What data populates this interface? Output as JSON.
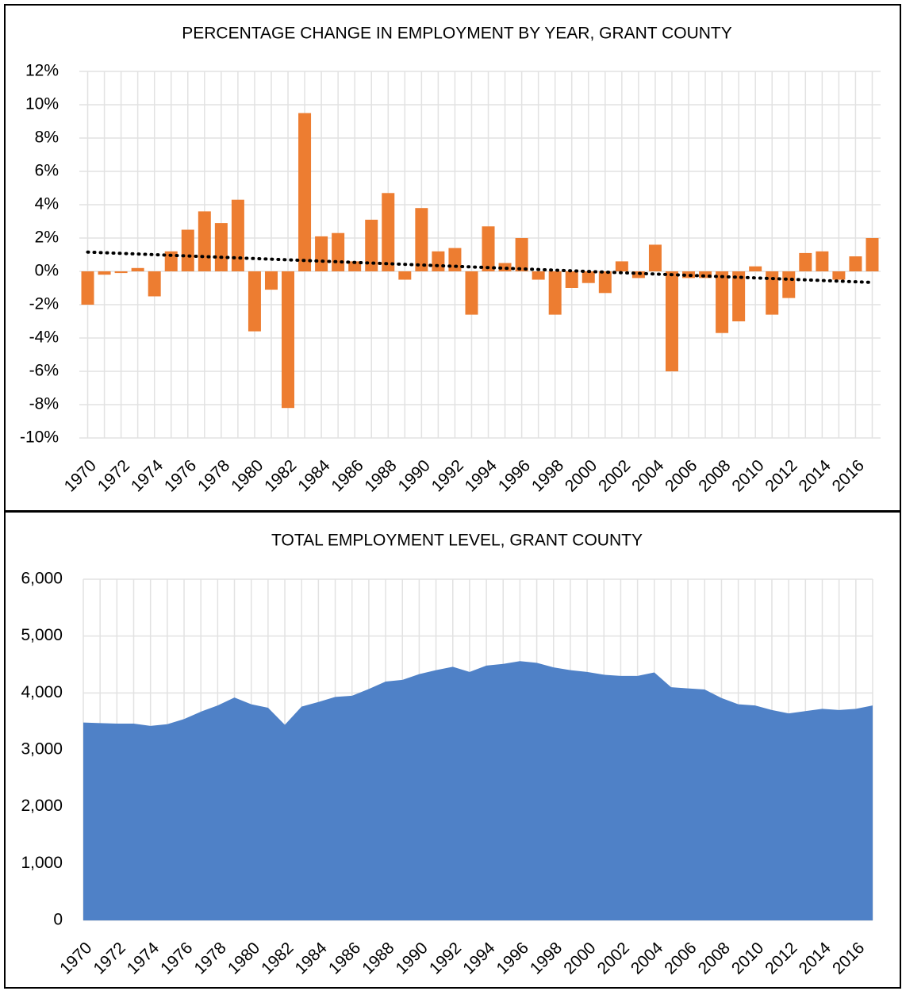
{
  "chart_data": [
    {
      "type": "bar",
      "title": "PERCENTAGE CHANGE IN EMPLOYMENT BY YEAR, GRANT COUNTY",
      "categories": [
        "1970",
        null,
        "1972",
        null,
        "1974",
        null,
        "1976",
        null,
        "1978",
        null,
        "1980",
        null,
        "1982",
        null,
        "1984",
        null,
        "1986",
        null,
        "1988",
        null,
        "1990",
        null,
        "1992",
        null,
        "1994",
        null,
        "1996",
        null,
        "1998",
        null,
        "2000",
        null,
        "2002",
        null,
        "2004",
        null,
        "2006",
        null,
        "2008",
        null,
        "2010",
        null,
        "2012",
        null,
        "2014",
        null,
        "2016",
        null
      ],
      "values": [
        -2.0,
        -0.2,
        -0.1,
        0.2,
        -1.5,
        1.2,
        2.5,
        3.6,
        2.9,
        4.3,
        -3.6,
        -1.1,
        -8.2,
        9.5,
        2.1,
        2.3,
        0.6,
        3.1,
        4.7,
        -0.5,
        3.8,
        1.2,
        1.4,
        -2.6,
        2.7,
        0.5,
        2.0,
        -0.5,
        -2.6,
        -1.0,
        -0.7,
        -1.3,
        0.6,
        -0.4,
        1.6,
        -6.0,
        -0.4,
        -0.4,
        -3.7,
        -3.0,
        0.3,
        -2.6,
        -1.6,
        1.1,
        1.2,
        -0.5,
        0.9,
        2.0
      ],
      "color": "#ed7d31",
      "trendline": true,
      "ylim": [
        -10,
        12
      ],
      "yticks": [
        {
          "value": -10,
          "label": "-10%"
        },
        {
          "value": -8,
          "label": "-8%"
        },
        {
          "value": -6,
          "label": "-6%"
        },
        {
          "value": -4,
          "label": "-4%"
        },
        {
          "value": -2,
          "label": "-2%"
        },
        {
          "value": 0,
          "label": "0%"
        },
        {
          "value": 2,
          "label": "2%"
        },
        {
          "value": 4,
          "label": "4%"
        },
        {
          "value": 6,
          "label": "6%"
        },
        {
          "value": 8,
          "label": "8%"
        },
        {
          "value": 10,
          "label": "10%"
        },
        {
          "value": 12,
          "label": "12%"
        }
      ],
      "grid": true
    },
    {
      "type": "area",
      "title": "TOTAL EMPLOYMENT LEVEL, GRANT COUNTY",
      "categories": [
        "1970",
        null,
        "1972",
        null,
        "1974",
        null,
        "1976",
        null,
        "1978",
        null,
        "1980",
        null,
        "1982",
        null,
        "1984",
        null,
        "1986",
        null,
        "1988",
        null,
        "1990",
        null,
        "1992",
        null,
        "1994",
        null,
        "1996",
        null,
        "1998",
        null,
        "2000",
        null,
        "2002",
        null,
        "2004",
        null,
        "2006",
        null,
        "2008",
        null,
        "2010",
        null,
        "2012",
        null,
        "2014",
        null,
        "2016",
        null
      ],
      "values": [
        3480,
        3470,
        3460,
        3460,
        3420,
        3450,
        3540,
        3670,
        3780,
        3920,
        3800,
        3740,
        3440,
        3760,
        3840,
        3930,
        3950,
        4070,
        4200,
        4230,
        4330,
        4400,
        4460,
        4370,
        4480,
        4510,
        4560,
        4530,
        4450,
        4400,
        4370,
        4320,
        4300,
        4300,
        4360,
        4100,
        4080,
        4060,
        3910,
        3800,
        3780,
        3700,
        3640,
        3680,
        3720,
        3700,
        3720,
        3780
      ],
      "color": "#4f81c7",
      "ylim": [
        0,
        6000
      ],
      "yticks": [
        0,
        {
          "value": 1000,
          "label": "1,000"
        },
        {
          "value": 2000,
          "label": "2,000"
        },
        {
          "value": 3000,
          "label": "3,000"
        },
        {
          "value": 4000,
          "label": "4,000"
        },
        {
          "value": 5000,
          "label": "5,000"
        },
        {
          "value": 6000,
          "label": "6,000"
        }
      ],
      "grid": true
    }
  ]
}
